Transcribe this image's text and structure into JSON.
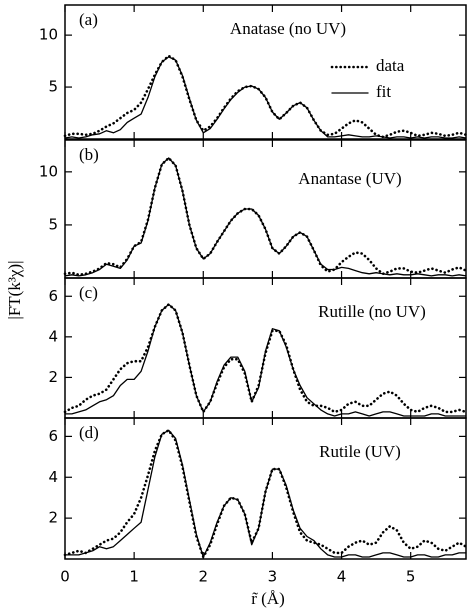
{
  "ylabel": "|FT(k³χ)|",
  "xlabel": "r̃ (Å)",
  "chart_data": [
    {
      "type": "line",
      "panel_label": "(a)",
      "title": "Anatase (no UV)",
      "legend": "upper right",
      "x": [
        0,
        0.1,
        0.2,
        0.3,
        0.4,
        0.5,
        0.6,
        0.7,
        0.8,
        0.9,
        1,
        1.1,
        1.2,
        1.3,
        1.4,
        1.5,
        1.6,
        1.7,
        1.8,
        1.9,
        2,
        2.1,
        2.2,
        2.3,
        2.4,
        2.5,
        2.6,
        2.7,
        2.8,
        2.9,
        3,
        3.1,
        3.2,
        3.3,
        3.4,
        3.5,
        3.6,
        3.7,
        3.8,
        3.9,
        4,
        4.1,
        4.2,
        4.3,
        4.4,
        4.5,
        4.6,
        4.7,
        4.8,
        4.9,
        5,
        5.1,
        5.2,
        5.3,
        5.4,
        5.5,
        5.6,
        5.7,
        5.8
      ],
      "xlim": [
        0,
        5.8
      ],
      "ylim": [
        0,
        12.9
      ],
      "yticks": [
        5,
        10
      ],
      "series": [
        {
          "name": "data",
          "style": "dotted",
          "color": "#000000",
          "values": [
            0.3,
            0.5,
            0.5,
            0.4,
            0.5,
            0.8,
            1.2,
            1.5,
            2.0,
            2.5,
            2.8,
            3.5,
            4.8,
            6.2,
            7.4,
            8.0,
            7.6,
            6.0,
            3.8,
            1.8,
            0.8,
            1.2,
            2.0,
            3.0,
            3.9,
            4.6,
            5.0,
            5.1,
            4.8,
            4.0,
            2.6,
            1.9,
            2.5,
            3.2,
            3.5,
            3.0,
            1.8,
            0.8,
            0.4,
            0.5,
            1.0,
            1.5,
            1.8,
            1.6,
            1.0,
            0.4,
            0.2,
            0.4,
            0.7,
            0.8,
            0.6,
            0.3,
            0.4,
            0.6,
            0.5,
            0.3,
            0.4,
            0.6,
            0.4
          ]
        },
        {
          "name": "fit",
          "style": "solid",
          "color": "#000000",
          "values": [
            0.1,
            0.2,
            0.1,
            0.2,
            0.4,
            0.5,
            0.8,
            0.6,
            0.9,
            1.6,
            2.0,
            2.4,
            4.0,
            6.0,
            7.4,
            7.9,
            7.6,
            6.1,
            3.9,
            1.8,
            0.6,
            1.0,
            1.9,
            2.9,
            3.8,
            4.5,
            5.0,
            5.1,
            4.8,
            4.0,
            2.6,
            1.9,
            2.5,
            3.2,
            3.5,
            3.0,
            1.8,
            0.8,
            0.2,
            0.2,
            0.3,
            0.4,
            0.3,
            0.2,
            0.2,
            0.3,
            0.2,
            0.1,
            0.2,
            0.2,
            0.1,
            0.2,
            0.1,
            0.2,
            0.2,
            0.1,
            0.1,
            0.2,
            0.1
          ]
        }
      ]
    },
    {
      "type": "line",
      "panel_label": "(b)",
      "title": "Anantase (UV)",
      "x": [
        0,
        0.1,
        0.2,
        0.3,
        0.4,
        0.5,
        0.6,
        0.7,
        0.8,
        0.9,
        1,
        1.1,
        1.2,
        1.3,
        1.4,
        1.5,
        1.6,
        1.7,
        1.8,
        1.9,
        2,
        2.1,
        2.2,
        2.3,
        2.4,
        2.5,
        2.6,
        2.7,
        2.8,
        2.9,
        3,
        3.1,
        3.2,
        3.3,
        3.4,
        3.5,
        3.6,
        3.7,
        3.8,
        3.9,
        4,
        4.1,
        4.2,
        4.3,
        4.4,
        4.5,
        4.6,
        4.7,
        4.8,
        4.9,
        5,
        5.1,
        5.2,
        5.3,
        5.4,
        5.5,
        5.6,
        5.7,
        5.8
      ],
      "xlim": [
        0,
        5.8
      ],
      "ylim": [
        0,
        13
      ],
      "yticks": [
        5,
        10
      ],
      "series": [
        {
          "style": "dotted",
          "color": "#000000",
          "values": [
            0.4,
            0.5,
            0.3,
            0.4,
            0.6,
            0.9,
            1.4,
            1.3,
            1.0,
            1.8,
            3.0,
            3.4,
            5.5,
            8.5,
            10.7,
            11.3,
            10.6,
            8.2,
            5.0,
            2.8,
            1.8,
            2.3,
            3.4,
            4.4,
            5.4,
            6.1,
            6.5,
            6.5,
            5.9,
            4.6,
            2.8,
            2.3,
            3.0,
            3.9,
            4.3,
            3.9,
            2.6,
            1.2,
            0.6,
            0.8,
            1.5,
            2.0,
            2.4,
            2.3,
            1.7,
            0.9,
            0.4,
            0.6,
            0.9,
            0.9,
            0.6,
            0.5,
            0.7,
            0.9,
            0.7,
            0.5,
            0.8,
            1.0,
            0.7
          ]
        },
        {
          "style": "solid",
          "color": "#000000",
          "values": [
            0.2,
            0.3,
            0.2,
            0.3,
            0.5,
            0.8,
            1.3,
            1.1,
            0.9,
            1.7,
            3.0,
            3.3,
            5.4,
            8.5,
            10.7,
            11.3,
            10.6,
            8.2,
            5.0,
            2.8,
            1.8,
            2.3,
            3.4,
            4.4,
            5.4,
            6.1,
            6.5,
            6.5,
            5.9,
            4.6,
            2.8,
            2.3,
            3.0,
            3.9,
            4.3,
            3.9,
            2.6,
            1.3,
            0.8,
            0.8,
            1.0,
            0.9,
            0.7,
            0.5,
            0.4,
            0.5,
            0.4,
            0.3,
            0.4,
            0.3,
            0.3,
            0.4,
            0.3,
            0.2,
            0.3,
            0.3,
            0.2,
            0.3,
            0.2
          ]
        }
      ]
    },
    {
      "type": "line",
      "panel_label": "(c)",
      "title": "Rutille (no UV)",
      "x": [
        0,
        0.1,
        0.2,
        0.3,
        0.4,
        0.5,
        0.6,
        0.7,
        0.8,
        0.9,
        1,
        1.1,
        1.2,
        1.3,
        1.4,
        1.5,
        1.6,
        1.7,
        1.8,
        1.9,
        2,
        2.1,
        2.2,
        2.3,
        2.4,
        2.5,
        2.6,
        2.7,
        2.8,
        2.9,
        3,
        3.1,
        3.2,
        3.3,
        3.4,
        3.5,
        3.6,
        3.7,
        3.8,
        3.9,
        4,
        4.1,
        4.2,
        4.3,
        4.4,
        4.5,
        4.6,
        4.7,
        4.8,
        4.9,
        5,
        5.1,
        5.2,
        5.3,
        5.4,
        5.5,
        5.6,
        5.7,
        5.8
      ],
      "xlim": [
        0,
        5.8
      ],
      "ylim": [
        0,
        6.9
      ],
      "yticks": [
        2,
        4,
        6
      ],
      "series": [
        {
          "style": "dotted",
          "color": "#000000",
          "values": [
            0.3,
            0.5,
            0.6,
            0.9,
            1.1,
            1.2,
            1.4,
            1.9,
            2.4,
            2.7,
            2.8,
            2.8,
            3.5,
            4.5,
            5.3,
            5.6,
            5.3,
            4.2,
            2.6,
            1.1,
            0.3,
            0.8,
            1.7,
            2.5,
            2.9,
            2.9,
            2.2,
            0.8,
            1.6,
            3.2,
            4.3,
            4.3,
            3.6,
            2.4,
            1.4,
            0.8,
            0.6,
            0.6,
            0.5,
            0.3,
            0.4,
            0.7,
            0.8,
            0.6,
            0.6,
            0.9,
            1.2,
            1.3,
            1.1,
            0.7,
            0.4,
            0.3,
            0.5,
            0.6,
            0.5,
            0.3,
            0.3,
            0.4,
            0.3
          ]
        },
        {
          "style": "solid",
          "color": "#000000",
          "values": [
            0.2,
            0.2,
            0.3,
            0.4,
            0.6,
            0.8,
            0.9,
            1.1,
            1.6,
            1.9,
            1.9,
            2.3,
            3.3,
            4.5,
            5.3,
            5.6,
            5.3,
            4.2,
            2.6,
            1.1,
            0.3,
            0.8,
            1.8,
            2.6,
            3.0,
            3.0,
            2.3,
            0.8,
            1.5,
            3.3,
            4.4,
            4.3,
            3.5,
            2.4,
            1.6,
            1.0,
            0.7,
            0.4,
            0.2,
            0.1,
            0.2,
            0.2,
            0.3,
            0.2,
            0.1,
            0.2,
            0.3,
            0.3,
            0.2,
            0.1,
            0.1,
            0.1,
            0.1,
            0.2,
            0.2,
            0.1,
            0.1,
            0.1,
            0.1
          ]
        }
      ]
    },
    {
      "type": "line",
      "panel_label": "(d)",
      "title": "Rutile (UV)",
      "x": [
        0,
        0.1,
        0.2,
        0.3,
        0.4,
        0.5,
        0.6,
        0.7,
        0.8,
        0.9,
        1,
        1.1,
        1.2,
        1.3,
        1.4,
        1.5,
        1.6,
        1.7,
        1.8,
        1.9,
        2,
        2.1,
        2.2,
        2.3,
        2.4,
        2.5,
        2.6,
        2.7,
        2.8,
        2.9,
        3,
        3.1,
        3.2,
        3.3,
        3.4,
        3.5,
        3.6,
        3.7,
        3.8,
        3.9,
        4,
        4.1,
        4.2,
        4.3,
        4.4,
        4.5,
        4.6,
        4.7,
        4.8,
        4.9,
        5,
        5.1,
        5.2,
        5.3,
        5.4,
        5.5,
        5.6,
        5.7,
        5.8
      ],
      "xlim": [
        0,
        5.8
      ],
      "ylim": [
        0,
        6.9
      ],
      "yticks": [
        2,
        4,
        6
      ],
      "xticks": [
        0,
        1,
        2,
        3,
        4,
        5
      ],
      "series": [
        {
          "style": "dotted",
          "color": "#000000",
          "values": [
            0.2,
            0.3,
            0.4,
            0.3,
            0.5,
            0.7,
            0.9,
            1.0,
            1.3,
            1.8,
            2.2,
            3.0,
            4.1,
            5.3,
            6.1,
            6.3,
            5.8,
            4.5,
            2.8,
            1.1,
            0.1,
            0.7,
            1.7,
            2.6,
            3.0,
            2.9,
            2.2,
            0.8,
            1.5,
            3.3,
            4.4,
            4.4,
            3.5,
            2.3,
            1.3,
            0.9,
            0.8,
            0.7,
            0.5,
            0.3,
            0.3,
            0.6,
            0.8,
            0.9,
            0.7,
            0.8,
            1.3,
            1.6,
            1.4,
            0.8,
            0.5,
            0.6,
            0.9,
            0.8,
            0.5,
            0.4,
            0.6,
            0.8,
            0.6
          ]
        },
        {
          "style": "solid",
          "color": "#000000",
          "values": [
            0.2,
            0.2,
            0.2,
            0.3,
            0.4,
            0.6,
            0.5,
            0.6,
            0.9,
            1.2,
            1.5,
            1.8,
            3.4,
            5.0,
            6.1,
            6.3,
            5.9,
            4.6,
            2.9,
            1.2,
            0.1,
            0.8,
            1.8,
            2.6,
            3.0,
            2.9,
            2.2,
            0.7,
            1.5,
            3.3,
            4.4,
            4.4,
            3.6,
            2.4,
            1.5,
            1.1,
            0.9,
            0.5,
            0.2,
            0.1,
            0.1,
            0.2,
            0.2,
            0.1,
            0.1,
            0.2,
            0.3,
            0.3,
            0.2,
            0.1,
            0.1,
            0.2,
            0.2,
            0.1,
            0.1,
            0.2,
            0.2,
            0.3,
            0.3
          ]
        }
      ]
    }
  ]
}
